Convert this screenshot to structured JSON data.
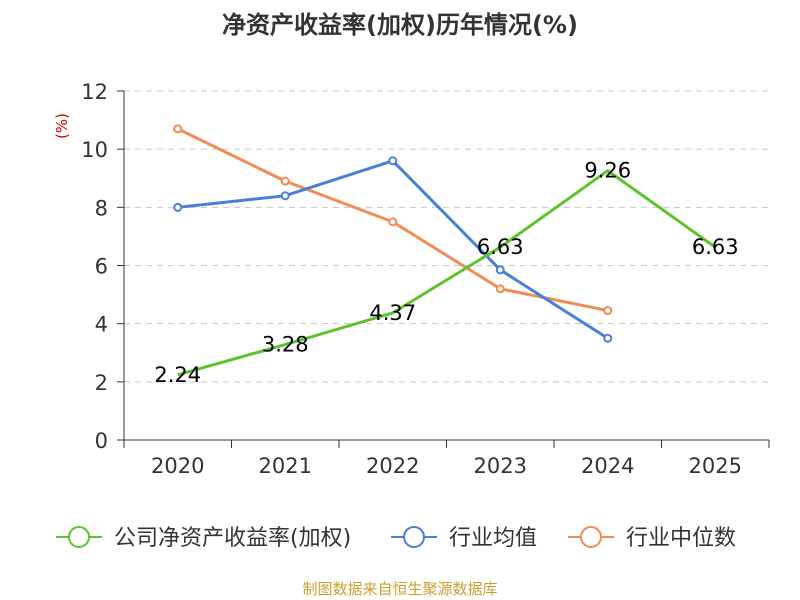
{
  "chart_data": {
    "type": "line",
    "title": "净资产收益率(加权)历年情况(%)",
    "ylabel": "(%)",
    "xlabel": "",
    "ylim": [
      0,
      12
    ],
    "yticks": [
      0,
      2,
      4,
      6,
      8,
      10,
      12
    ],
    "categories": [
      "2020",
      "2021",
      "2022",
      "2023",
      "2024",
      "2025"
    ],
    "grid": true,
    "legend_position": "bottom",
    "series": [
      {
        "name": "公司净资产收益率(加权)",
        "color": "#5cc22e",
        "values": [
          2.24,
          3.28,
          4.37,
          6.63,
          9.26,
          6.63
        ],
        "labels": [
          "2.24",
          "3.28",
          "4.37",
          "6.63",
          "9.26",
          "6.63"
        ]
      },
      {
        "name": "行业均值",
        "color": "#4a7fd8",
        "values": [
          8.0,
          8.4,
          9.6,
          5.85,
          3.5,
          null
        ]
      },
      {
        "name": "行业中位数",
        "color": "#f28b55",
        "values": [
          10.7,
          8.9,
          7.5,
          5.2,
          4.45,
          null
        ]
      }
    ],
    "source": "制图数据来自恒生聚源数据库"
  }
}
